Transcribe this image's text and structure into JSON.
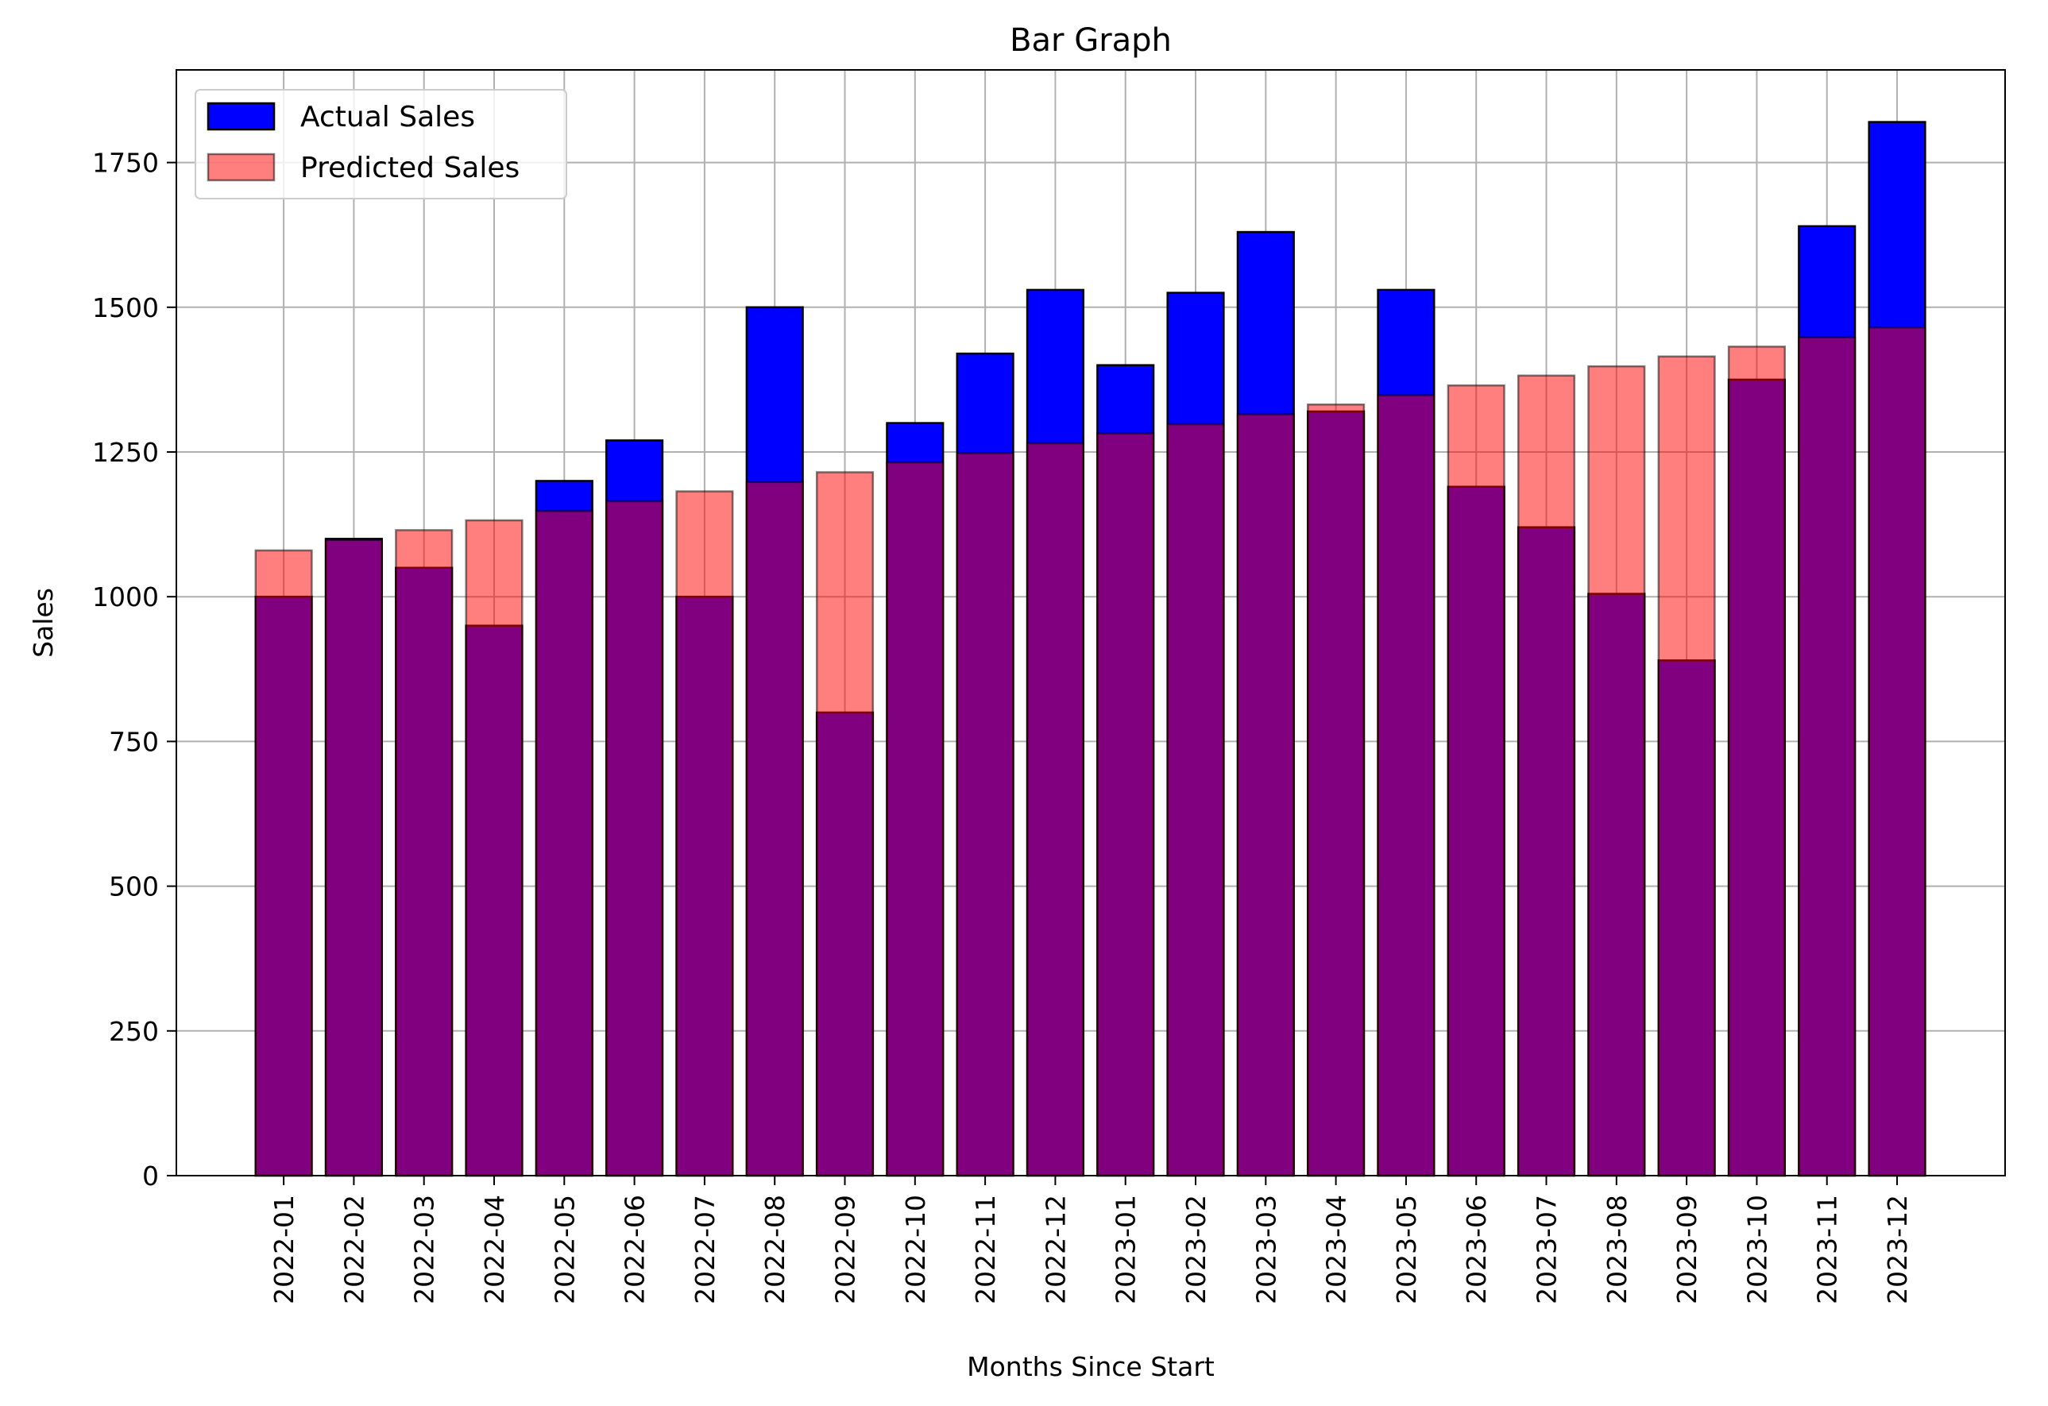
{
  "chart_data": {
    "type": "bar",
    "title": "Bar Graph",
    "xlabel": "Months Since Start",
    "ylabel": "Sales",
    "categories": [
      "2022-01",
      "2022-02",
      "2022-03",
      "2022-04",
      "2022-05",
      "2022-06",
      "2022-07",
      "2022-08",
      "2022-09",
      "2022-10",
      "2022-11",
      "2022-12",
      "2023-01",
      "2023-02",
      "2023-03",
      "2023-04",
      "2023-05",
      "2023-06",
      "2023-07",
      "2023-08",
      "2023-09",
      "2023-10",
      "2023-11",
      "2023-12"
    ],
    "series": [
      {
        "name": "Actual Sales",
        "color": "#0000ff",
        "opacity": 1.0,
        "values": [
          1000,
          1100,
          1050,
          950,
          1200,
          1270,
          1000,
          1500,
          800,
          1300,
          1420,
          1530,
          1400,
          1525,
          1630,
          1320,
          1530,
          1190,
          1120,
          1005,
          890,
          1375,
          1640,
          1820
        ]
      },
      {
        "name": "Predicted Sales",
        "color": "#ff0000",
        "opacity": 0.5,
        "values": [
          1080,
          1098,
          1115,
          1132,
          1148,
          1165,
          1182,
          1198,
          1215,
          1232,
          1248,
          1265,
          1282,
          1298,
          1315,
          1332,
          1348,
          1365,
          1382,
          1398,
          1415,
          1432,
          1448,
          1465
        ]
      }
    ],
    "ylim": [
      0,
      1910
    ],
    "yticks": [
      0,
      250,
      500,
      750,
      1000,
      1250,
      1500,
      1750
    ],
    "grid": true,
    "legend_position": "top-left"
  }
}
